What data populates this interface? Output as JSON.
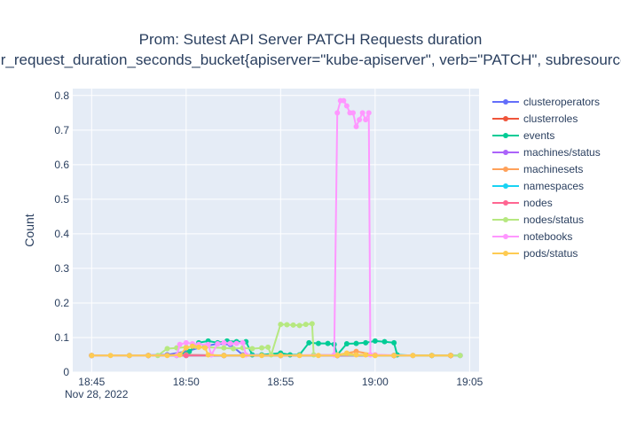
{
  "chart_data": {
    "type": "line",
    "title": "Prom: Sutest API Server PATCH Requests duration",
    "subtitle": "apiserver_request_duration_seconds_bucket{apiserver=\"kube-apiserver\", verb=\"PATCH\", subresource!=\"log\"}",
    "ylabel": "Count",
    "xlabel": "",
    "x_date_label": "Nov 28, 2022",
    "x_ticks": [
      "18:45",
      "18:50",
      "18:55",
      "19:00",
      "19:05"
    ],
    "xlim_minutes": [
      "18:44:00",
      "19:05:30"
    ],
    "ylim": [
      0,
      0.82
    ],
    "y_ticks": [
      0,
      0.1,
      0.2,
      0.3,
      0.4,
      0.5,
      0.6,
      0.7,
      0.8
    ],
    "grid": true,
    "legend_position": "right",
    "plot_background": "#e5ecf6",
    "series": [
      {
        "name": "clusteroperators",
        "color": "#636efa",
        "x": [
          "18:45:00",
          "18:47:00",
          "18:49:00",
          "18:50:00",
          "18:51:00",
          "18:51:40",
          "18:52:20",
          "18:53:00",
          "18:55:00",
          "18:58:00",
          "19:01:00",
          "19:03:00",
          "19:04:30"
        ],
        "y": [
          0.048,
          0.048,
          0.05,
          0.06,
          0.075,
          0.082,
          0.08,
          0.05,
          0.048,
          0.048,
          0.048,
          0.048,
          0.048
        ]
      },
      {
        "name": "clusterroles",
        "color": "#EF553B",
        "x": [
          "18:45:00",
          "18:48:00",
          "18:50:00",
          "18:52:00",
          "18:55:00",
          "18:58:00",
          "19:01:00",
          "19:04:00"
        ],
        "y": [
          0.048,
          0.048,
          0.048,
          0.048,
          0.048,
          0.048,
          0.048,
          0.048
        ]
      },
      {
        "name": "events",
        "color": "#00cc96",
        "x": [
          "18:45:00",
          "18:49:30",
          "18:50:10",
          "18:50:40",
          "18:51:10",
          "18:51:40",
          "18:52:10",
          "18:52:40",
          "18:53:10",
          "18:53:30",
          "18:54:00",
          "18:55:00",
          "18:55:30",
          "18:56:00",
          "18:56:30",
          "18:57:00",
          "18:57:30",
          "18:57:50",
          "18:58:00",
          "18:58:30",
          "18:59:00",
          "18:59:30",
          "19:00:00",
          "19:00:30",
          "19:01:00",
          "19:01:10",
          "19:02:00",
          "19:03:00",
          "19:04:00"
        ],
        "y": [
          0.048,
          0.048,
          0.06,
          0.085,
          0.09,
          0.085,
          0.09,
          0.088,
          0.088,
          0.05,
          0.05,
          0.055,
          0.05,
          0.05,
          0.085,
          0.083,
          0.083,
          0.08,
          0.05,
          0.082,
          0.083,
          0.085,
          0.09,
          0.088,
          0.085,
          0.05,
          0.048,
          0.048,
          0.048
        ]
      },
      {
        "name": "machines/status",
        "color": "#ab63fa",
        "x": [
          "18:45:00",
          "18:48:00",
          "18:50:00",
          "18:52:00",
          "18:55:00",
          "18:58:00",
          "19:01:00",
          "19:04:00"
        ],
        "y": [
          0.048,
          0.048,
          0.05,
          0.048,
          0.048,
          0.048,
          0.048,
          0.048
        ]
      },
      {
        "name": "machinesets",
        "color": "#FFA15A",
        "x": [
          "18:45:00",
          "18:48:00",
          "18:50:00",
          "18:52:00",
          "18:55:00",
          "18:58:00",
          "18:59:00",
          "19:00:00",
          "19:01:00",
          "19:04:00"
        ],
        "y": [
          0.048,
          0.048,
          0.05,
          0.048,
          0.048,
          0.05,
          0.06,
          0.05,
          0.048,
          0.048
        ]
      },
      {
        "name": "namespaces",
        "color": "#19d3f3",
        "x": [
          "18:45:00",
          "18:48:00",
          "18:50:00",
          "18:52:00",
          "18:55:00",
          "18:58:00",
          "19:01:00",
          "19:04:00"
        ],
        "y": [
          0.048,
          0.048,
          0.048,
          0.048,
          0.048,
          0.048,
          0.048,
          0.048
        ]
      },
      {
        "name": "nodes",
        "color": "#FF6692",
        "x": [
          "18:45:00",
          "18:48:00",
          "18:50:00",
          "18:52:00",
          "18:55:00",
          "18:58:00",
          "19:01:00",
          "19:04:00"
        ],
        "y": [
          0.048,
          0.048,
          0.048,
          0.048,
          0.048,
          0.048,
          0.048,
          0.048
        ]
      },
      {
        "name": "nodes/status",
        "color": "#B6E880",
        "x": [
          "18:45:00",
          "18:48:30",
          "18:49:00",
          "18:49:30",
          "18:50:00",
          "18:50:30",
          "18:51:00",
          "18:52:00",
          "18:52:30",
          "18:53:00",
          "18:53:30",
          "18:54:00",
          "18:54:20",
          "18:54:30",
          "18:55:00",
          "18:55:20",
          "18:55:40",
          "18:56:00",
          "18:56:20",
          "18:56:40",
          "18:56:45",
          "18:58:00",
          "19:00:00",
          "19:02:00",
          "19:04:30"
        ],
        "y": [
          0.048,
          0.048,
          0.068,
          0.07,
          0.072,
          0.075,
          0.072,
          0.07,
          0.068,
          0.07,
          0.068,
          0.07,
          0.072,
          0.05,
          0.138,
          0.137,
          0.136,
          0.135,
          0.138,
          0.14,
          0.05,
          0.05,
          0.048,
          0.048,
          0.048
        ]
      },
      {
        "name": "notebooks",
        "color": "#FF97FF",
        "x": [
          "18:45:00",
          "18:49:30",
          "18:49:40",
          "18:50:00",
          "18:50:20",
          "18:50:40",
          "18:51:10",
          "18:51:20",
          "18:51:40",
          "18:52:00",
          "18:52:20",
          "18:52:40",
          "18:53:00",
          "18:53:10",
          "18:55:00",
          "18:57:50",
          "18:58:00",
          "18:58:10",
          "18:58:20",
          "18:58:30",
          "18:58:40",
          "18:58:50",
          "18:59:00",
          "18:59:10",
          "18:59:20",
          "18:59:30",
          "18:59:40",
          "18:59:45",
          "19:00:00",
          "19:02:00"
        ],
        "y": [
          0.048,
          0.048,
          0.08,
          0.085,
          0.082,
          0.08,
          0.08,
          0.05,
          0.082,
          0.085,
          0.083,
          0.083,
          0.085,
          0.05,
          0.048,
          0.05,
          0.75,
          0.785,
          0.785,
          0.77,
          0.75,
          0.75,
          0.71,
          0.73,
          0.75,
          0.73,
          0.75,
          0.05,
          0.05,
          0.048
        ]
      },
      {
        "name": "pods/status",
        "color": "#FECB52",
        "x": [
          "18:45:00",
          "18:46:00",
          "18:47:00",
          "18:48:00",
          "18:49:00",
          "18:49:40",
          "18:50:00",
          "18:50:20",
          "18:50:40",
          "18:51:00",
          "18:51:10",
          "18:52:00",
          "18:53:00",
          "18:54:00",
          "18:55:00",
          "18:56:00",
          "18:57:00",
          "18:58:00",
          "18:58:30",
          "18:59:00",
          "18:59:30",
          "19:00:00",
          "19:01:00",
          "19:02:00",
          "19:03:00",
          "19:04:00"
        ],
        "y": [
          0.048,
          0.048,
          0.048,
          0.048,
          0.048,
          0.05,
          0.07,
          0.075,
          0.072,
          0.07,
          0.05,
          0.048,
          0.048,
          0.048,
          0.048,
          0.048,
          0.048,
          0.048,
          0.055,
          0.05,
          0.05,
          0.048,
          0.048,
          0.048,
          0.048,
          0.048
        ]
      }
    ]
  }
}
